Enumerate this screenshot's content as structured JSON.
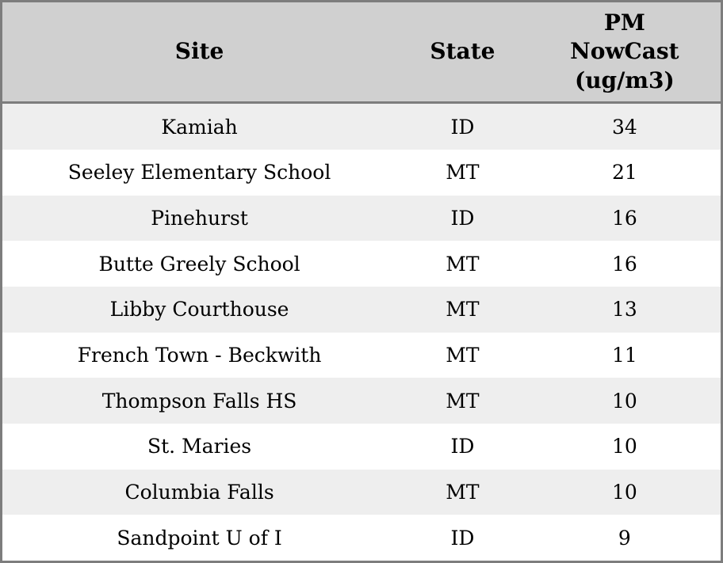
{
  "chart_data": {
    "type": "table",
    "title": "",
    "columns": [
      "Site",
      "State",
      "PM NowCast (ug/m3)"
    ],
    "column_display": [
      "Site",
      "State",
      "PM\nNowCast\n(ug/m3)"
    ],
    "rows": [
      [
        "Kamiah",
        "ID",
        34
      ],
      [
        "Seeley Elementary School",
        "MT",
        21
      ],
      [
        "Pinehurst",
        "ID",
        16
      ],
      [
        "Butte Greely School",
        "MT",
        16
      ],
      [
        "Libby Courthouse",
        "MT",
        13
      ],
      [
        "French Town - Beckwith",
        "MT",
        11
      ],
      [
        "Thompson Falls HS",
        "MT",
        10
      ],
      [
        "St. Maries",
        "ID",
        10
      ],
      [
        "Columbia Falls",
        "MT",
        10
      ],
      [
        "Sandpoint U of I",
        "ID",
        9
      ]
    ],
    "layout": {
      "header_background": "#d0d0d0",
      "row_alt_background": "#eeeeee",
      "row_background": "#ffffff",
      "border_color": "#7d7d7d",
      "text_color": "#000000",
      "grid": "none-between-rows"
    }
  }
}
